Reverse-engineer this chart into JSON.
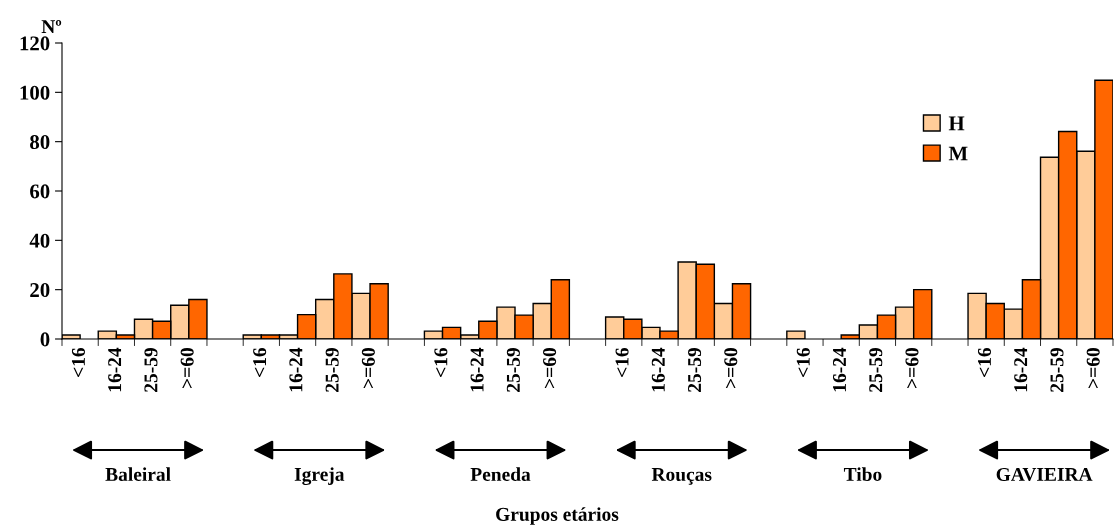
{
  "chart_data": {
    "type": "bar",
    "ylabel": "Nº",
    "categories": [
      "<16",
      "16-24",
      "25-59",
      ">=60",
      null,
      "<16",
      "16-24",
      "25-59",
      ">=60",
      null,
      "<16",
      "16-24",
      "25-59",
      ">=60",
      null,
      "<16",
      "16-24",
      "25-59",
      ">=60",
      null,
      "<16",
      "16-24",
      "25-59",
      ">=60",
      null,
      "<16",
      "16-24",
      "25-59",
      ">=60"
    ],
    "series": [
      {
        "name": "H",
        "color": "#ffcc99",
        "values": [
          1.6,
          3.2,
          8,
          13.7,
          null,
          1.6,
          1.6,
          16,
          18.5,
          null,
          3.2,
          1.6,
          12.9,
          14.4,
          null,
          8.9,
          4.7,
          31.2,
          14.4,
          null,
          3.2,
          null,
          5.7,
          12.9,
          null,
          18.5,
          12.1,
          73.7,
          76.1
        ]
      },
      {
        "name": "M",
        "color": "#ff6600",
        "values": [
          null,
          1.6,
          7.2,
          16,
          null,
          1.6,
          9.9,
          26.4,
          22.4,
          null,
          4.7,
          7.2,
          9.7,
          24,
          null,
          8,
          3.2,
          30.3,
          22.4,
          null,
          null,
          1.6,
          9.7,
          20,
          null,
          14.4,
          24,
          84.1,
          104.9
        ]
      }
    ],
    "annotations": [
      "Baleiral",
      "Igreja",
      "Peneda",
      "Rouças",
      "Tibo",
      "GAVIEIRA",
      "Grupos etários"
    ],
    "ylim": [
      0,
      120
    ],
    "yticks": [
      0,
      20,
      40,
      60,
      80,
      100,
      120
    ],
    "grid": false,
    "legend": "top right"
  }
}
